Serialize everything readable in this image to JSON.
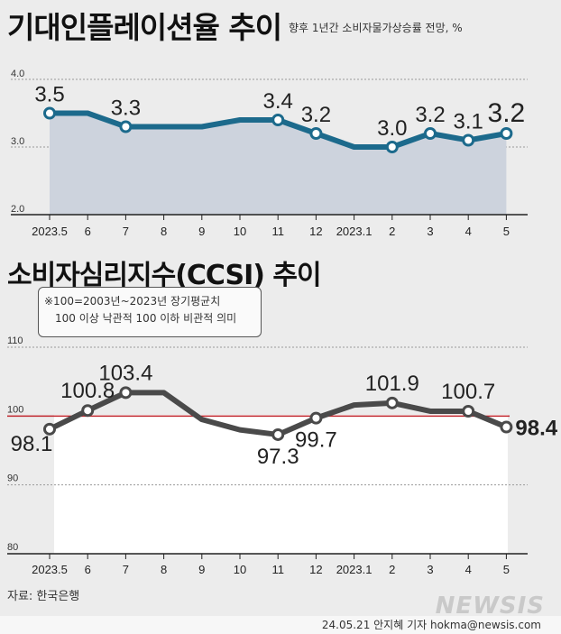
{
  "title1": "기대인플레이션율 추이",
  "subtitle1": "향후 1년간 소비자물가상승률 전망, %",
  "title2": "소비자심리지수(CCSI) 추이",
  "note": {
    "line1": "※100=2003년~2023년 장기평균치",
    "line2": "100 이상 낙관적 100 이하 비관적 의미"
  },
  "source": "자료: 한국은행",
  "logo": "NEWSIS",
  "byline": "24.05.21 안지혜 기자 hokma@newsis.com",
  "colors": {
    "line1": "#1c6a8c",
    "area1": "#cdd3dd",
    "line2": "#4a4a4a",
    "refline": "#c0262d"
  },
  "chart_data": [
    {
      "type": "area",
      "title": "기대인플레이션율 추이",
      "subtitle": "향후 1년간 소비자물가상승률 전망, %",
      "categories": [
        "2023.5",
        "6",
        "7",
        "8",
        "9",
        "10",
        "11",
        "12",
        "2023.1",
        "2",
        "3",
        "4",
        "5"
      ],
      "series": [
        {
          "values": [
            3.5,
            3.5,
            3.3,
            3.3,
            3.3,
            3.4,
            3.4,
            3.2,
            3.0,
            3.0,
            3.2,
            3.1,
            3.2
          ]
        }
      ],
      "labeled_points": [
        {
          "index": 0,
          "value": "3.5"
        },
        {
          "index": 2,
          "value": "3.3"
        },
        {
          "index": 6,
          "value": "3.4"
        },
        {
          "index": 7,
          "value": "3.2"
        },
        {
          "index": 9,
          "value": "3.0"
        },
        {
          "index": 10,
          "value": "3.2"
        },
        {
          "index": 11,
          "value": "3.1"
        },
        {
          "index": 12,
          "value": "3.2"
        }
      ],
      "yticks": [
        "2.0",
        "3.0",
        "4.0"
      ],
      "ylim": [
        2.0,
        4.0
      ],
      "grid": true
    },
    {
      "type": "line",
      "title": "소비자심리지수(CCSI) 추이",
      "categories": [
        "2023.5",
        "6",
        "7",
        "8",
        "9",
        "10",
        "11",
        "12",
        "2023.1",
        "2",
        "3",
        "4",
        "5"
      ],
      "series": [
        {
          "values": [
            98.1,
            100.8,
            103.4,
            103.4,
            99.5,
            98.0,
            97.3,
            99.7,
            101.6,
            101.9,
            100.7,
            100.7,
            98.4
          ]
        }
      ],
      "labeled_points": [
        {
          "index": 0,
          "value": "98.1"
        },
        {
          "index": 1,
          "value": "100.8"
        },
        {
          "index": 2,
          "value": "103.4"
        },
        {
          "index": 6,
          "value": "97.3"
        },
        {
          "index": 7,
          "value": "99.7"
        },
        {
          "index": 9,
          "value": "101.9"
        },
        {
          "index": 11,
          "value": "100.7"
        },
        {
          "index": 12,
          "value": "98.4"
        }
      ],
      "reference_line": 100,
      "yticks": [
        "80",
        "90",
        "100",
        "110"
      ],
      "ylim": [
        80,
        110
      ],
      "grid": true
    }
  ]
}
